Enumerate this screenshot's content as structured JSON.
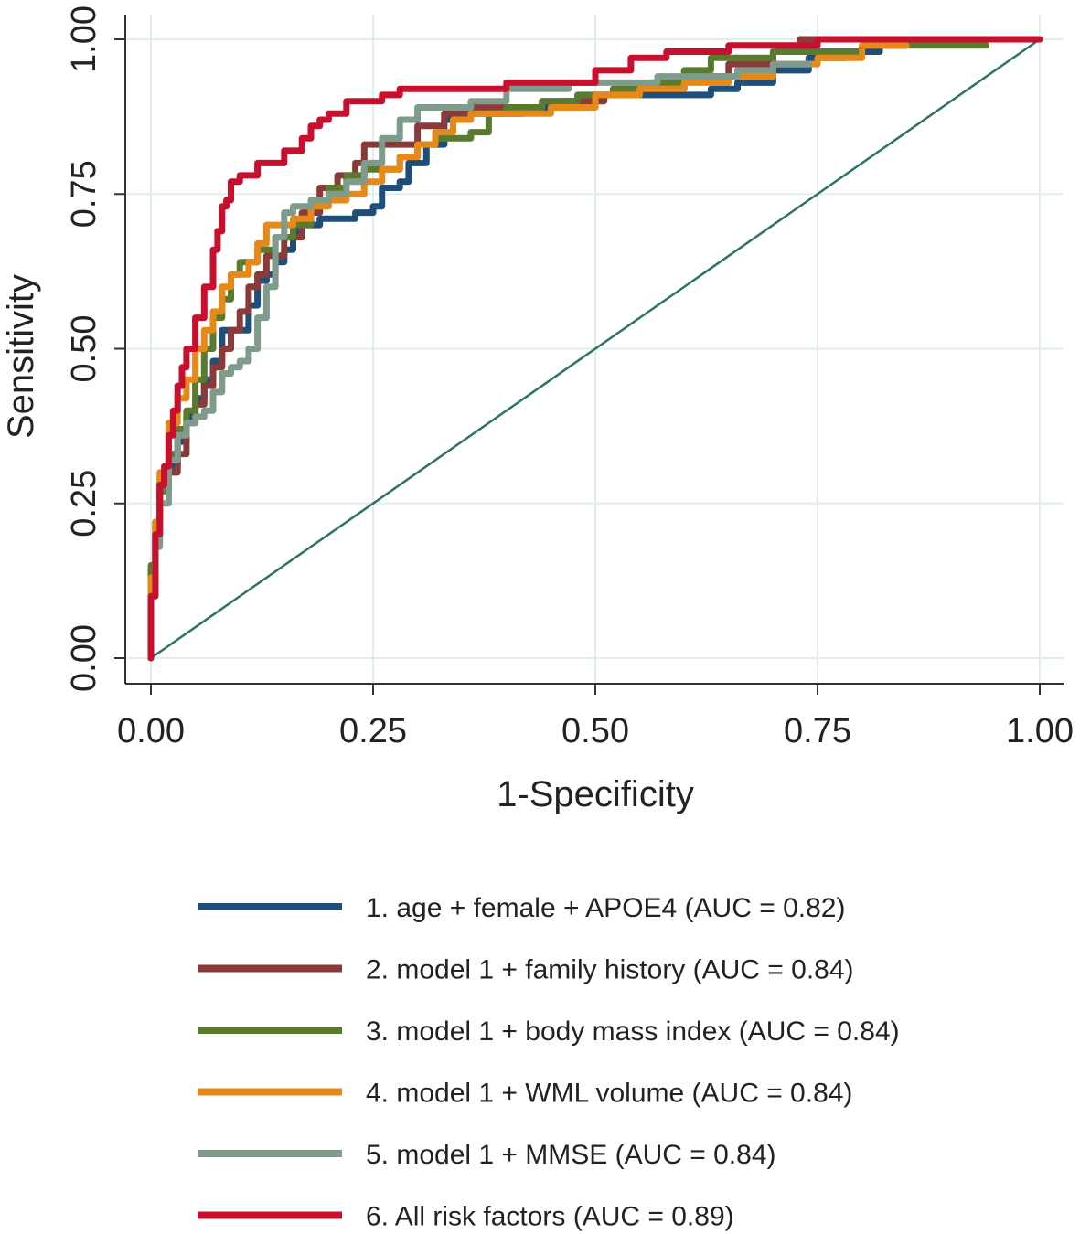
{
  "chart_data": {
    "type": "line",
    "title": "",
    "xlabel": "1-Specificity",
    "ylabel": "Sensitivity",
    "xlim": [
      0,
      1
    ],
    "ylim": [
      0,
      1
    ],
    "xticks": [
      "0.00",
      "0.25",
      "0.50",
      "0.75",
      "1.00"
    ],
    "yticks": [
      "0.00",
      "0.25",
      "0.50",
      "0.75",
      "1.00"
    ],
    "grid": true,
    "legend_position": "bottom",
    "reference_line": {
      "name": "reference",
      "color": "#2e7268",
      "x": [
        0,
        1
      ],
      "y": [
        0,
        1
      ]
    },
    "series": [
      {
        "name": "1. age + female + APOE4 (AUC = 0.82)",
        "color": "#1f4e79",
        "x": [
          0,
          0.005,
          0.01,
          0.02,
          0.03,
          0.04,
          0.05,
          0.06,
          0.07,
          0.08,
          0.09,
          0.1,
          0.11,
          0.12,
          0.13,
          0.14,
          0.15,
          0.16,
          0.17,
          0.19,
          0.21,
          0.23,
          0.25,
          0.26,
          0.28,
          0.29,
          0.31,
          0.33,
          0.35,
          0.38,
          0.42,
          0.46,
          0.5,
          0.55,
          0.6,
          0.63,
          0.66,
          0.7,
          0.74,
          0.78,
          0.82,
          0.85,
          1.0
        ],
        "y": [
          0,
          0.12,
          0.2,
          0.27,
          0.31,
          0.35,
          0.39,
          0.42,
          0.45,
          0.48,
          0.53,
          0.53,
          0.53,
          0.57,
          0.61,
          0.62,
          0.64,
          0.66,
          0.69,
          0.7,
          0.71,
          0.71,
          0.72,
          0.73,
          0.76,
          0.77,
          0.8,
          0.83,
          0.87,
          0.88,
          0.88,
          0.89,
          0.9,
          0.91,
          0.91,
          0.91,
          0.92,
          0.93,
          0.95,
          0.97,
          0.98,
          0.99,
          1.0
        ]
      },
      {
        "name": "2. model 1 + family history (AUC = 0.84)",
        "color": "#8b3a3a",
        "x": [
          0,
          0.005,
          0.01,
          0.02,
          0.03,
          0.04,
          0.05,
          0.06,
          0.07,
          0.08,
          0.09,
          0.1,
          0.11,
          0.12,
          0.13,
          0.15,
          0.17,
          0.19,
          0.21,
          0.23,
          0.24,
          0.25,
          0.26,
          0.28,
          0.3,
          0.33,
          0.36,
          0.4,
          0.44,
          0.48,
          0.51,
          0.55,
          0.6,
          0.65,
          0.7,
          0.73,
          0.77,
          1.0
        ],
        "y": [
          0,
          0.14,
          0.22,
          0.28,
          0.3,
          0.33,
          0.38,
          0.41,
          0.44,
          0.47,
          0.5,
          0.53,
          0.56,
          0.6,
          0.62,
          0.65,
          0.68,
          0.72,
          0.76,
          0.78,
          0.8,
          0.83,
          0.83,
          0.83,
          0.83,
          0.86,
          0.88,
          0.89,
          0.89,
          0.9,
          0.9,
          0.91,
          0.92,
          0.94,
          0.96,
          0.98,
          1.0,
          1.0
        ]
      },
      {
        "name": "3. model 1 + body mass index (AUC = 0.84)",
        "color": "#5a7a30",
        "x": [
          0,
          0.005,
          0.01,
          0.02,
          0.03,
          0.04,
          0.05,
          0.06,
          0.07,
          0.08,
          0.09,
          0.1,
          0.11,
          0.12,
          0.14,
          0.16,
          0.18,
          0.2,
          0.22,
          0.24,
          0.26,
          0.28,
          0.3,
          0.32,
          0.34,
          0.36,
          0.38,
          0.4,
          0.44,
          0.48,
          0.52,
          0.56,
          0.6,
          0.63,
          0.66,
          0.7,
          0.8,
          0.94
        ],
        "y": [
          0,
          0.15,
          0.22,
          0.27,
          0.33,
          0.37,
          0.4,
          0.45,
          0.5,
          0.55,
          0.58,
          0.62,
          0.64,
          0.64,
          0.66,
          0.68,
          0.7,
          0.74,
          0.76,
          0.78,
          0.79,
          0.79,
          0.81,
          0.83,
          0.84,
          0.84,
          0.85,
          0.88,
          0.89,
          0.9,
          0.91,
          0.92,
          0.93,
          0.95,
          0.97,
          0.97,
          0.98,
          0.99
        ]
      },
      {
        "name": "4. model 1 + WML volume (AUC = 0.84)",
        "color": "#e5891a",
        "x": [
          0,
          0.005,
          0.01,
          0.02,
          0.03,
          0.04,
          0.05,
          0.06,
          0.07,
          0.08,
          0.09,
          0.1,
          0.11,
          0.12,
          0.13,
          0.14,
          0.15,
          0.16,
          0.18,
          0.2,
          0.22,
          0.24,
          0.26,
          0.28,
          0.3,
          0.32,
          0.34,
          0.36,
          0.4,
          0.45,
          0.5,
          0.55,
          0.6,
          0.65,
          0.7,
          0.75,
          0.8,
          0.85
        ],
        "y": [
          0,
          0.13,
          0.22,
          0.3,
          0.38,
          0.42,
          0.45,
          0.5,
          0.53,
          0.56,
          0.6,
          0.62,
          0.62,
          0.64,
          0.67,
          0.7,
          0.7,
          0.7,
          0.71,
          0.73,
          0.74,
          0.75,
          0.77,
          0.79,
          0.81,
          0.83,
          0.85,
          0.87,
          0.88,
          0.88,
          0.89,
          0.91,
          0.92,
          0.93,
          0.94,
          0.96,
          0.97,
          0.99
        ]
      },
      {
        "name": "5. model 1 + MMSE (AUC = 0.84)",
        "color": "#7f9b8c",
        "x": [
          0,
          0.005,
          0.01,
          0.02,
          0.03,
          0.04,
          0.05,
          0.06,
          0.07,
          0.08,
          0.09,
          0.1,
          0.11,
          0.12,
          0.13,
          0.14,
          0.15,
          0.16,
          0.18,
          0.2,
          0.22,
          0.24,
          0.26,
          0.28,
          0.3,
          0.32,
          0.34,
          0.36,
          0.4,
          0.43,
          0.47,
          0.52,
          0.57,
          0.62,
          0.66,
          0.7,
          0.74
        ],
        "y": [
          0,
          0.1,
          0.18,
          0.25,
          0.32,
          0.36,
          0.38,
          0.39,
          0.4,
          0.43,
          0.46,
          0.47,
          0.48,
          0.5,
          0.55,
          0.6,
          0.68,
          0.72,
          0.73,
          0.74,
          0.75,
          0.77,
          0.8,
          0.84,
          0.87,
          0.89,
          0.89,
          0.89,
          0.9,
          0.92,
          0.92,
          0.93,
          0.93,
          0.94,
          0.94,
          0.95,
          0.96
        ]
      },
      {
        "name": "6. All risk factors (AUC = 0.89)",
        "color": "#c8102e",
        "x": [
          0,
          0.005,
          0.01,
          0.015,
          0.02,
          0.025,
          0.03,
          0.035,
          0.04,
          0.05,
          0.06,
          0.07,
          0.075,
          0.08,
          0.085,
          0.09,
          0.1,
          0.11,
          0.12,
          0.15,
          0.17,
          0.18,
          0.19,
          0.2,
          0.22,
          0.26,
          0.28,
          0.32,
          0.4,
          0.5,
          0.54,
          0.58,
          0.6,
          0.65,
          0.7,
          0.75,
          0.8,
          1.0
        ],
        "y": [
          0,
          0.1,
          0.2,
          0.28,
          0.31,
          0.36,
          0.4,
          0.44,
          0.47,
          0.5,
          0.55,
          0.6,
          0.66,
          0.69,
          0.73,
          0.74,
          0.77,
          0.78,
          0.78,
          0.8,
          0.82,
          0.84,
          0.86,
          0.87,
          0.88,
          0.9,
          0.91,
          0.92,
          0.92,
          0.93,
          0.95,
          0.97,
          0.98,
          0.98,
          0.99,
          0.99,
          1.0,
          1.0
        ]
      }
    ]
  }
}
